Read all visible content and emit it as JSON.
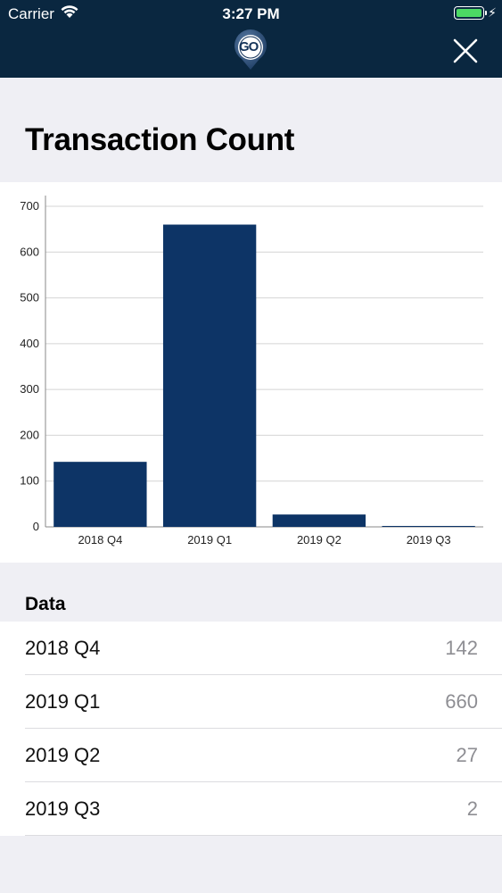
{
  "status_bar": {
    "carrier": "Carrier",
    "time": "3:27 PM"
  },
  "header": {
    "logo_text": "GO",
    "close_icon": "close-icon",
    "background": "#0a2740"
  },
  "page": {
    "title": "Transaction Count"
  },
  "chart_data": {
    "type": "bar",
    "title": "",
    "categories": [
      "2018 Q4",
      "2019 Q1",
      "2019 Q2",
      "2019 Q3"
    ],
    "values": [
      142,
      660,
      27,
      2
    ],
    "ylim": [
      0,
      700
    ],
    "yticks": [
      0,
      100,
      200,
      300,
      400,
      500,
      600,
      700
    ],
    "grid": true,
    "color": "#0d3466"
  },
  "data_section": {
    "header": "Data",
    "rows": [
      {
        "label": "2018 Q4",
        "value": "142"
      },
      {
        "label": "2019 Q1",
        "value": "660"
      },
      {
        "label": "2019 Q2",
        "value": "27"
      },
      {
        "label": "2019 Q3",
        "value": "2"
      }
    ]
  }
}
